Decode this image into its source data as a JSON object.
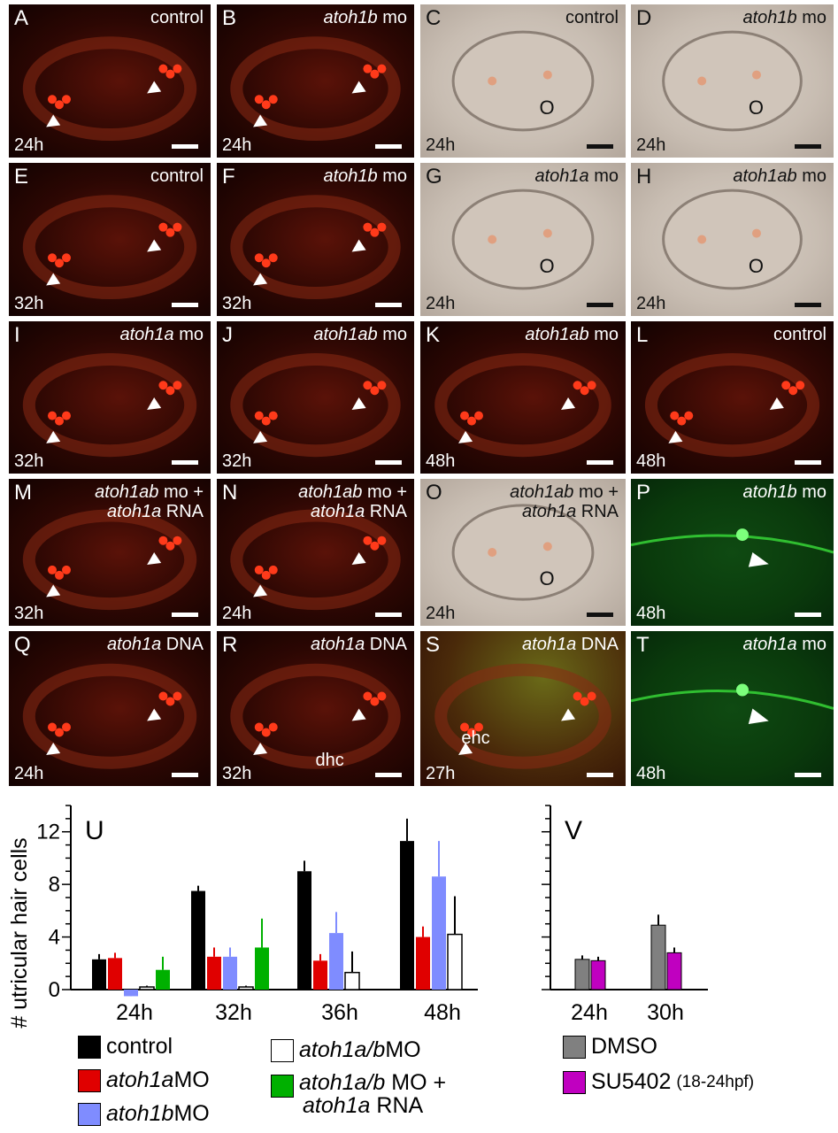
{
  "panels": [
    {
      "letter": "A",
      "title_italic": "",
      "title_rest": "control",
      "time": "24h",
      "type": "red"
    },
    {
      "letter": "B",
      "title_italic": "atoh1b",
      "title_rest": " mo",
      "time": "24h",
      "type": "red"
    },
    {
      "letter": "C",
      "title_italic": "",
      "title_rest": "control",
      "time": "24h",
      "type": "dic"
    },
    {
      "letter": "D",
      "title_italic": "atoh1b",
      "title_rest": " mo",
      "time": "24h",
      "type": "dic"
    },
    {
      "letter": "E",
      "title_italic": "",
      "title_rest": "control",
      "time": "32h",
      "type": "red"
    },
    {
      "letter": "F",
      "title_italic": "atoh1b",
      "title_rest": " mo",
      "time": "32h",
      "type": "red"
    },
    {
      "letter": "G",
      "title_italic": "atoh1a",
      "title_rest": " mo",
      "time": "24h",
      "type": "dic"
    },
    {
      "letter": "H",
      "title_italic": "atoh1ab",
      "title_rest": " mo",
      "time": "24h",
      "type": "dic"
    },
    {
      "letter": "I",
      "title_italic": "atoh1a",
      "title_rest": " mo",
      "time": "32h",
      "type": "red"
    },
    {
      "letter": "J",
      "title_italic": "atoh1ab",
      "title_rest": " mo",
      "time": "32h",
      "type": "red"
    },
    {
      "letter": "K",
      "title_italic": "atoh1ab",
      "title_rest": " mo",
      "time": "48h",
      "type": "red"
    },
    {
      "letter": "L",
      "title_italic": "",
      "title_rest": "control",
      "time": "48h",
      "type": "red"
    },
    {
      "letter": "M",
      "title_italic": "atoh1ab",
      "title_rest": " mo +",
      "title2_italic": "atoh1a",
      "title2_rest": " RNA",
      "time": "32h",
      "type": "red"
    },
    {
      "letter": "N",
      "title_italic": "atoh1ab",
      "title_rest": " mo +",
      "title2_italic": "atoh1a",
      "title2_rest": " RNA",
      "time": "24h",
      "type": "red"
    },
    {
      "letter": "O",
      "title_italic": "atoh1ab",
      "title_rest": " mo +",
      "title2_italic": "atoh1a",
      "title2_rest": " RNA",
      "time": "24h",
      "type": "dic"
    },
    {
      "letter": "P",
      "title_italic": "atoh1b",
      "title_rest": " mo",
      "time": "48h",
      "type": "green"
    },
    {
      "letter": "Q",
      "title_italic": "atoh1a",
      "title_rest": " DNA",
      "time": "24h",
      "type": "red"
    },
    {
      "letter": "R",
      "title_italic": "atoh1a",
      "title_rest": " DNA",
      "time": "32h",
      "type": "red"
    },
    {
      "letter": "S",
      "title_italic": "atoh1a",
      "title_rest": " DNA",
      "time": "27h",
      "type": "mixed"
    },
    {
      "letter": "T",
      "title_italic": "atoh1a",
      "title_rest": " mo",
      "time": "48h",
      "type": "green"
    }
  ],
  "annotations": {
    "otolith_label": "O",
    "dhc": "dhc",
    "ehc": "ehc"
  },
  "chart_data": [
    {
      "panel_label": "U",
      "type": "bar",
      "ylabel": "# utricular hair cells",
      "ylim": [
        0,
        14
      ],
      "yticks": [
        0,
        4,
        8,
        12
      ],
      "categories": [
        "24h",
        "32h",
        "36h",
        "48h"
      ],
      "series": [
        {
          "name": "control",
          "color": "#000000",
          "values": [
            2.3,
            7.5,
            9.0,
            11.3
          ],
          "errors": [
            0.4,
            0.4,
            0.8,
            1.7
          ]
        },
        {
          "name": "atoh1a MO",
          "color": "#e00000",
          "values": [
            2.4,
            2.5,
            2.2,
            4.0
          ],
          "errors": [
            0.4,
            0.7,
            0.5,
            0.8
          ]
        },
        {
          "name": "atoh1b MO",
          "color": "#7f8cff",
          "values": [
            -0.5,
            2.5,
            4.3,
            8.6
          ],
          "errors": [
            0.1,
            0.7,
            1.6,
            2.7
          ]
        },
        {
          "name": "atoh1a/b MO",
          "color": "#ffffff",
          "values": [
            0.2,
            0.2,
            1.3,
            4.2
          ],
          "errors": [
            0.1,
            0.1,
            1.6,
            2.9
          ]
        },
        {
          "name": "atoh1a/b MO + atoh1a RNA",
          "color": "#00b000",
          "values": [
            1.5,
            3.2,
            null,
            null
          ],
          "errors": [
            1.0,
            2.2,
            null,
            null
          ]
        }
      ],
      "legend": [
        {
          "pre": "",
          "italic": "",
          "post": "control",
          "color": "#000000"
        },
        {
          "pre": "",
          "italic": "atoh1a",
          "post": " MO",
          "color": "#e00000"
        },
        {
          "pre": "",
          "italic": "atoh1b",
          "post": " MO",
          "color": "#7f8cff"
        },
        {
          "pre": "",
          "italic": "atoh1a/b",
          "post": " MO",
          "color": "#ffffff"
        },
        {
          "pre": "",
          "italic": "atoh1a/b",
          "post": " MO +",
          "line2_italic": "atoh1a",
          "line2_post": " RNA",
          "color": "#00b000"
        }
      ]
    },
    {
      "panel_label": "V",
      "type": "bar",
      "ylim": [
        0,
        14
      ],
      "categories": [
        "24h",
        "30h"
      ],
      "series": [
        {
          "name": "DMSO",
          "color": "#808080",
          "values": [
            2.3,
            4.9
          ],
          "errors": [
            0.3,
            0.8
          ]
        },
        {
          "name": "SU5402",
          "color": "#c000c0",
          "values": [
            2.2,
            2.8
          ],
          "errors": [
            0.3,
            0.4
          ]
        }
      ],
      "legend": [
        {
          "label": "DMSO",
          "note": "",
          "color": "#808080"
        },
        {
          "label": "SU5402",
          "note": "(18-24hpf)",
          "color": "#c000c0"
        }
      ]
    }
  ]
}
